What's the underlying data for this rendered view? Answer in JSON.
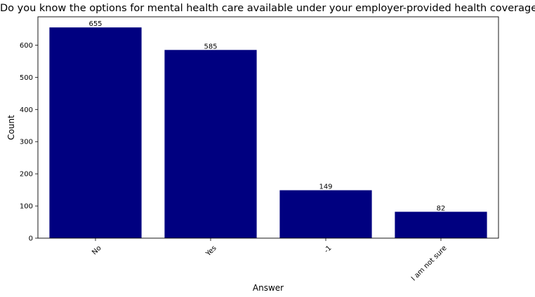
{
  "chart_data": {
    "type": "bar",
    "title": "Do you know the options for mental health care available under your employer-provided health coverage?",
    "xlabel": "Answer",
    "ylabel": "Count",
    "categories": [
      "No",
      "Yes",
      "-1",
      "I am not sure"
    ],
    "values": [
      655,
      585,
      149,
      82
    ],
    "data_labels": [
      "655",
      "585",
      "149",
      "82"
    ],
    "ylim": [
      0,
      688
    ],
    "yticks": [
      0,
      100,
      200,
      300,
      400,
      500,
      600
    ],
    "grid": false,
    "legend": "none",
    "bar_color": "#000080",
    "xtick_rotation": 45
  }
}
